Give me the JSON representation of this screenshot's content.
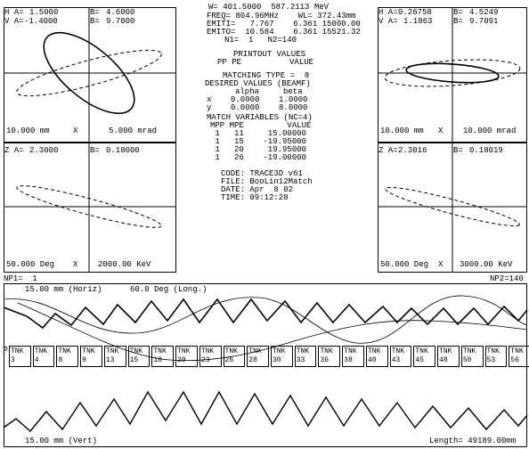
{
  "phase_top_left": {
    "alpha_label": "H A=",
    "alpha": "1.5000",
    "beta_label": "B=",
    "beta": "4.6000",
    "v_alpha_label": "V A=",
    "v_alpha": "-1.4000",
    "v_beta_label": "B=",
    "v_beta": "9.7000",
    "scale_left": "10.000 mm",
    "axis_x": "X",
    "scale_right": "5.000 mrad"
  },
  "phase_top_right": {
    "alpha_label": "H A=",
    "alpha": "0.26758",
    "beta_label": "B=",
    "beta": "4.5249",
    "v_alpha_label": "V A=",
    "v_alpha": "1.1863",
    "v_beta_label": "B=",
    "v_beta": "9.7091",
    "scale_left": "10.000 mm",
    "axis_x": "X",
    "scale_right": "10.000 mrad"
  },
  "phase_bottom_left": {
    "alpha_label": "Z A=",
    "alpha": "2.3000",
    "beta_label": "B=",
    "beta": "0.18000",
    "scale_left": "50.000 Deg",
    "axis_x": "X",
    "scale_right": "2000.00 KeV"
  },
  "phase_bottom_right": {
    "alpha_label": "Z A=",
    "alpha": "2.3016",
    "beta_label": "B=",
    "beta": "0.18019",
    "scale_left": "50.000 Deg",
    "axis_x": "X",
    "scale_right": "3000.00 KeV"
  },
  "center": {
    "line1": "W= 401.5000  587.2113 MeV",
    "line2": "FREQ= 804.96MHz    WL= 372.43mm",
    "line3": "EMITI=   7.767    6.361 15000.00",
    "line4": "EMITO=  10.584    6.361 15521.32",
    "line5": "N1=  1   N2=140",
    "printout_title": "PRINTOUT VALUES",
    "printout_cols": "PP PE          VALUE",
    "matching_type": "MATCHING TYPE =  8",
    "desired_title": "DESIRED VALUES (BEAMF)",
    "desired_cols": "alpha     beta",
    "desired_x": "x    0.0000    1.0000",
    "desired_y": "y    0.0000    8.0000",
    "match_title": "MATCH VARIABLES (NC=4)",
    "match_cols": "MPP MPE         VALUE",
    "match_rows": [
      " 1   11     15.00000",
      " 1   15    -19.95000",
      " 1   20     19.95000",
      " 1   26    -19.00000"
    ],
    "code": "CODE: TRACE3D v61",
    "file": "FILE: BooLin12Match",
    "date": "DATE: Apr  8 02",
    "time": "TIME: 09:12:28"
  },
  "np1": "NP1=  1",
  "np2": "NP2=140",
  "envelope": {
    "top_label": "15.00 mm (Horiz)",
    "long_label": "60.0 Deg (Long.)",
    "bottom_label": "15.00 mm (Vert)",
    "length_label": "Length= 49189.00mm",
    "element_start": "0",
    "element_label": "TNK",
    "element_numbers": [
      "3",
      "4",
      "8",
      "9",
      "13",
      "15",
      "18",
      "20",
      "23",
      "26",
      "28",
      "30",
      "33",
      "36",
      "38",
      "40",
      "43",
      "45",
      "48",
      "50",
      "53",
      "56",
      "58",
      "60",
      "63",
      "66",
      "68",
      "70",
      "73",
      "76",
      "78",
      "80",
      "83",
      "86",
      "88",
      "90",
      "93",
      "96",
      "98",
      "101",
      "103",
      "106",
      "108",
      "111",
      "113",
      "116",
      "118",
      "121",
      "123",
      "126",
      "128",
      "131",
      "133",
      "136",
      "138"
    ]
  }
}
